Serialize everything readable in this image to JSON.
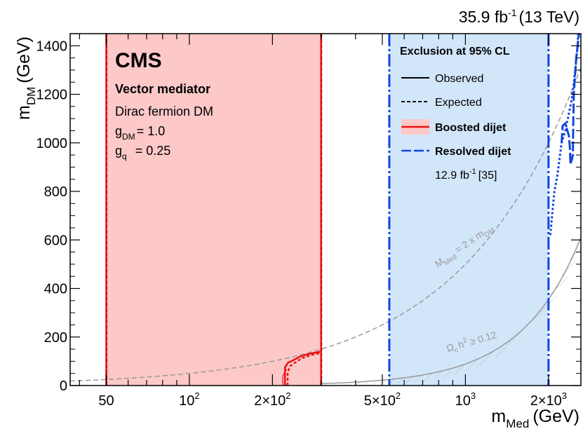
{
  "chart_data": {
    "type": "line",
    "title": "",
    "lumi_label": "35.9 fb⁻¹ (13 TeV)",
    "lumi_parts": {
      "value": "35.9 fb",
      "exp": "-1",
      "energy": "(13 TeV)"
    },
    "cms_label": "CMS",
    "model": {
      "line1": "Vector mediator",
      "line2": "Dirac fermion DM",
      "gdm_sym": "g",
      "gdm_sub": "DM",
      "gdm_val": "= 1.0",
      "gq_sym": "g",
      "gq_sub": "q",
      "gq_val": "= 0.25"
    },
    "xlabel": {
      "main": "m",
      "sub": "Med",
      "unit": "(GeV)"
    },
    "ylabel": {
      "main": "m",
      "sub": "DM",
      "unit": "(GeV)"
    },
    "x_scale": "log",
    "xlim": [
      37,
      2620
    ],
    "ylim": [
      0,
      1450
    ],
    "x_ticks": [
      {
        "value": 50,
        "label": "50"
      },
      {
        "value": 100,
        "label": "10",
        "exp": "2"
      },
      {
        "value": 200,
        "label": "2×10",
        "exp": "2"
      },
      {
        "value": 500,
        "label": "5×10",
        "exp": "2"
      },
      {
        "value": 1000,
        "label": "10",
        "exp": "3"
      },
      {
        "value": 2000,
        "label": "2×10",
        "exp": "3"
      }
    ],
    "y_ticks": [
      0,
      200,
      400,
      600,
      800,
      1000,
      1200,
      1400
    ],
    "legend": {
      "title": "Exclusion at 95% CL",
      "observed": "Observed",
      "expected": "Expected",
      "boosted": "Boosted dijet",
      "resolved": "Resolved dijet",
      "lumi_ref": "12.9 fb",
      "lumi_ref_exp": "-1",
      "lumi_ref_cite": "[35]",
      "placement": "top-right"
    },
    "annotations": {
      "kinematic": {
        "main": "M",
        "sub": "Med",
        "rest": " = 2 x m",
        "sub2": "DM"
      },
      "relic": {
        "omega": "Ω",
        "sub": "c",
        "h": "h",
        "sup": "2",
        "rest": " ≥ 0.12"
      }
    },
    "colors": {
      "boosted_fill": "#fcc8c8",
      "boosted_line": "#ee1111",
      "resolved_fill": "#d2e6fa",
      "resolved_line": "#1144dd",
      "guide_line": "#999999"
    },
    "boosted_region": {
      "x_range": [
        50,
        300
      ],
      "y_range": [
        0,
        1450
      ]
    },
    "boosted_lowmass_observed": [
      [
        222,
        0
      ],
      [
        222,
        75
      ],
      [
        228,
        95
      ],
      [
        236,
        102
      ],
      [
        250,
        118
      ],
      [
        270,
        130
      ],
      [
        300,
        140
      ]
    ],
    "boosted_lowmass_expected": [
      [
        227,
        0
      ],
      [
        227,
        55
      ],
      [
        232,
        80
      ],
      [
        240,
        92
      ],
      [
        255,
        112
      ],
      [
        275,
        125
      ],
      [
        300,
        135
      ]
    ],
    "boosted_lowmass_thin": [
      [
        218,
        0
      ],
      [
        218,
        40
      ],
      [
        225,
        68
      ]
    ],
    "resolved_region": {
      "x_range": [
        530,
        2000
      ],
      "y_range": [
        0,
        1450
      ]
    },
    "resolved_observed_upper": [
      [
        2400,
        915
      ],
      [
        2430,
        930
      ],
      [
        2450,
        950
      ],
      [
        2460,
        1100
      ],
      [
        2470,
        1200
      ],
      [
        2520,
        1350
      ],
      [
        2580,
        1450
      ]
    ],
    "resolved_expected_upper": [
      [
        2030,
        620
      ],
      [
        2060,
        700
      ],
      [
        2100,
        800
      ],
      [
        2150,
        860
      ],
      [
        2230,
        1000
      ],
      [
        2300,
        1050
      ],
      [
        2350,
        1100
      ],
      [
        2430,
        1180
      ],
      [
        2500,
        1300
      ],
      [
        2550,
        1400
      ],
      [
        2560,
        1450
      ]
    ],
    "resolved_observed_spike": [
      [
        2230,
        1000
      ],
      [
        2250,
        1070
      ],
      [
        2300,
        1080
      ],
      [
        2340,
        1050
      ],
      [
        2370,
        1030
      ],
      [
        2390,
        980
      ],
      [
        2400,
        920
      ]
    ]
  }
}
